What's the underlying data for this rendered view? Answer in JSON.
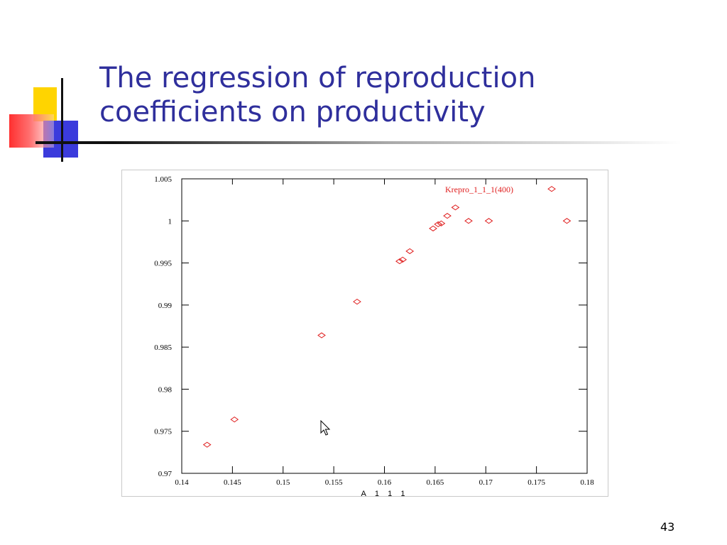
{
  "slide": {
    "title_line1": "The regression of reproduction",
    "title_line2": "coefficients on productivity",
    "page_number": "43"
  },
  "chart_data": {
    "type": "scatter",
    "title": "",
    "xlabel": "A_1_1_1",
    "ylabel": "",
    "xlim": [
      0.14,
      0.18
    ],
    "ylim": [
      0.97,
      1.005
    ],
    "xticks": [
      "0.14",
      "0.145",
      "0.15",
      "0.155",
      "0.16",
      "0.165",
      "0.17",
      "0.175",
      "0.18"
    ],
    "yticks": [
      "0.97",
      "0.975",
      "0.98",
      "0.985",
      "0.99",
      "0.995",
      "1",
      "1.005"
    ],
    "legend_position": "top-right",
    "marker": "diamond",
    "series": [
      {
        "name": "Krepro_1_1_1(400)",
        "color": "#e02020",
        "x": [
          0.1425,
          0.1452,
          0.1538,
          0.1573,
          0.1615,
          0.1618,
          0.1625,
          0.1648,
          0.1653,
          0.1656,
          0.1662,
          0.167,
          0.1683,
          0.1703,
          0.1765,
          0.178
        ],
        "y": [
          0.9734,
          0.9764,
          0.9864,
          0.9904,
          0.9952,
          0.9954,
          0.9964,
          0.9991,
          0.9996,
          0.9997,
          1.0006,
          1.0016,
          1.0,
          1.0,
          1.0038,
          1.0
        ]
      }
    ]
  }
}
